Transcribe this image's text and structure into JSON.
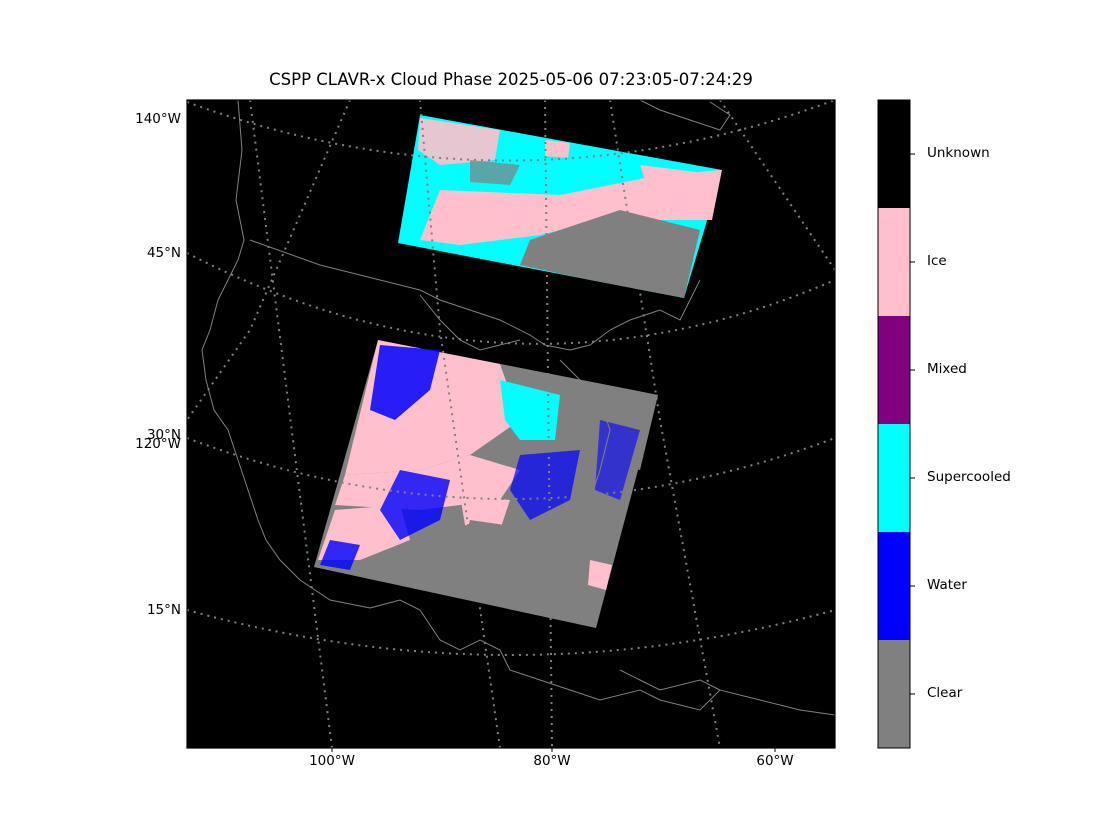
{
  "title": "CSPP CLAVR-x Cloud Phase 2025-05-06 07:23:05-07:24:29",
  "lat_labels": [
    "140°W",
    "45°N",
    "30°N",
    "120°W",
    "15°N"
  ],
  "lon_labels": [
    "100°W",
    "80°W",
    "60°W"
  ],
  "colorbar": [
    {
      "label": "Unknown",
      "color": "#000000"
    },
    {
      "label": "Ice",
      "color": "#ffc0cb"
    },
    {
      "label": "Mixed",
      "color": "#800080"
    },
    {
      "label": "Supercooled",
      "color": "#00ffff"
    },
    {
      "label": "Water",
      "color": "#0000ff"
    },
    {
      "label": "Clear",
      "color": "#808080"
    }
  ],
  "colors": {
    "map_background": "#000000",
    "coastline": "#808080",
    "gridline": "#808080"
  }
}
